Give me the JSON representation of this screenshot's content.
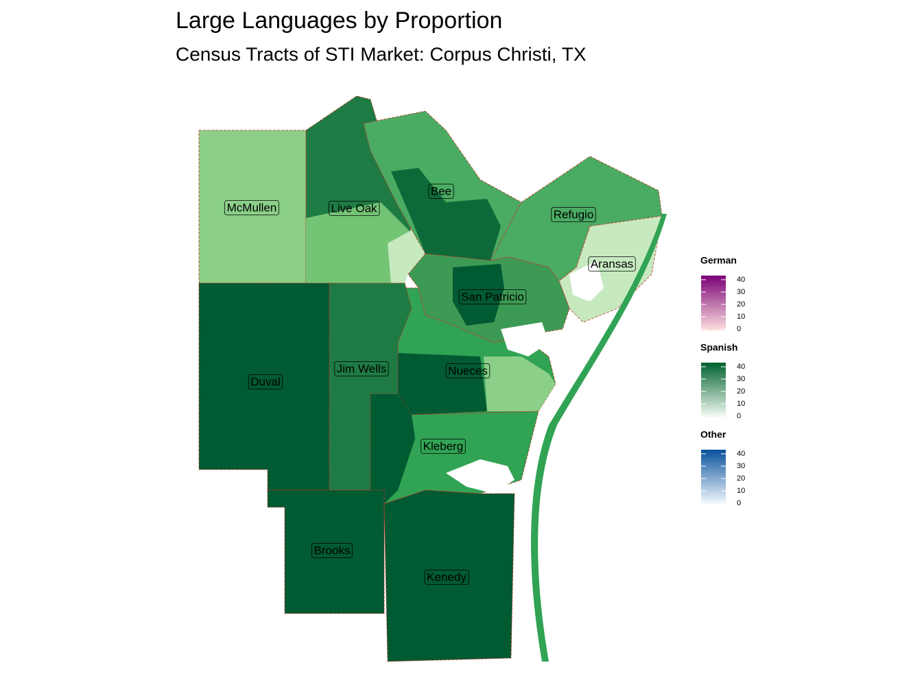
{
  "header": {
    "title": "Large Languages by Proportion",
    "subtitle": "Census Tracts of STI Market: Corpus Christi, TX"
  },
  "map": {
    "counties": [
      {
        "label": "McMullen"
      },
      {
        "label": "Live Oak"
      },
      {
        "label": "Bee"
      },
      {
        "label": "Refugio"
      },
      {
        "label": "Aransas"
      },
      {
        "label": "San Patricio"
      },
      {
        "label": "Duval"
      },
      {
        "label": "Jim Wells"
      },
      {
        "label": "Nueces"
      },
      {
        "label": "Kleberg"
      },
      {
        "label": "Brooks"
      },
      {
        "label": "Kenedy"
      }
    ]
  },
  "legends": [
    {
      "title": "German",
      "ticks": [
        0,
        10,
        20,
        30,
        40
      ],
      "colors": [
        "#fde0dd",
        "#7a0177"
      ]
    },
    {
      "title": "Spanish",
      "ticks": [
        0,
        10,
        20,
        30,
        40
      ],
      "colors": [
        "#f7fcf5",
        "#00612f"
      ]
    },
    {
      "title": "Other",
      "ticks": [
        0,
        10,
        20,
        30,
        40
      ],
      "colors": [
        "#f7fbff",
        "#08519c"
      ]
    }
  ]
}
